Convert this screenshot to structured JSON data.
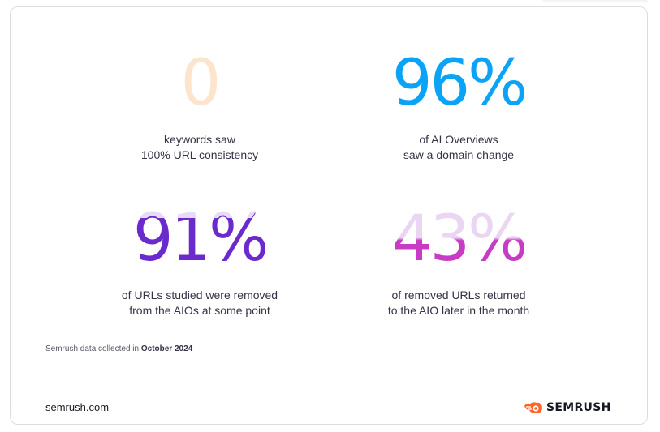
{
  "stats": [
    {
      "value": "0",
      "line1": "keywords saw",
      "line2": "100% URL consistency",
      "color": "#fde4cc"
    },
    {
      "value": "96%",
      "line1": "of AI Overviews",
      "line2": "saw a domain change",
      "color": "#0aa3f5"
    },
    {
      "value": "91%",
      "line1": "of URLs studied were removed",
      "line2": "from the AIOs at some point",
      "color": "#6b2bcc"
    },
    {
      "value": "43%",
      "line1": "of removed URLs returned",
      "line2": "to the AIO later in the month",
      "color": "#c83bc4"
    }
  ],
  "source": {
    "prefix": "Semrush data collected in",
    "date": "October 2024"
  },
  "footer": {
    "site": "semrush.com",
    "brand": "SEMRUSH",
    "brand_color": "#ff642d"
  }
}
